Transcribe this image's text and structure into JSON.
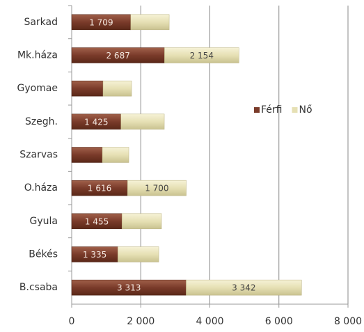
{
  "chart_data": {
    "type": "stacked-bar-horizontal",
    "categories": [
      "Sarkad",
      "Mk.háza",
      "Gyomae",
      "Szegh.",
      "Szarvas",
      "O.háza",
      "Gyula",
      "Békés",
      "B.csaba"
    ],
    "series": [
      {
        "name": "Férfi",
        "color": "#7a3b2a",
        "values": [
          1709,
          2687,
          907,
          1425,
          887,
          1616,
          1455,
          1335,
          3313
        ],
        "value_labels": [
          "1 709",
          "2 687",
          null,
          "1 425",
          null,
          "1 616",
          "1 455",
          "1 335",
          "3 313"
        ]
      },
      {
        "name": "Nő",
        "color": "#e6e0b4",
        "values": [
          1114,
          2154,
          827,
          1256,
          766,
          1700,
          1145,
          1185,
          3342
        ],
        "value_labels": [
          null,
          "2 154",
          null,
          null,
          null,
          "1 700",
          null,
          null,
          "3 342"
        ]
      }
    ],
    "xlim": [
      0,
      8000
    ],
    "xticks": [
      0,
      {
        "value": 2000,
        "label": "2 000"
      },
      {
        "value": 4000,
        "label": "4 000"
      },
      {
        "value": 6000,
        "label": "6 000"
      },
      {
        "value": 8000,
        "label": "8 000"
      }
    ],
    "grid": true,
    "legend": "right"
  }
}
